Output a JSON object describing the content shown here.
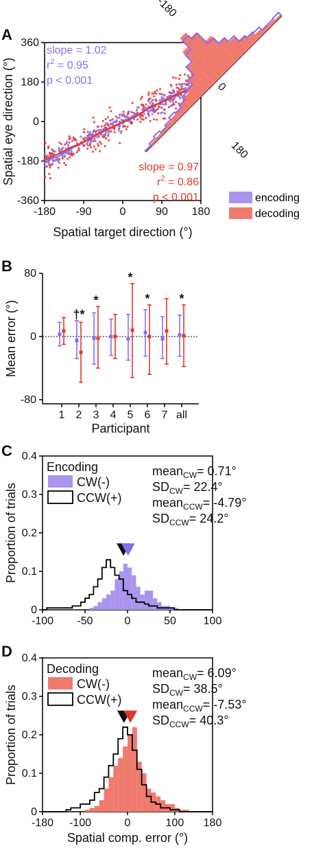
{
  "colors": {
    "encoding": "#8b6cf0",
    "decoding": "#e4372b",
    "encoding_fill": "#a995ee",
    "decoding_fill": "#ef7b6e",
    "black": "#111111"
  },
  "panel_labels": [
    "A",
    "B",
    "C",
    "D"
  ],
  "chart_data": [
    {
      "panel": "A",
      "type": "scatter",
      "xlabel": "Spatial target direction (°)",
      "ylabel": "Spatial eye direction (°)",
      "xlim": [
        -180,
        180
      ],
      "ylim": [
        -360,
        360
      ],
      "xticks": [
        "-180",
        "-90",
        "0",
        "90",
        "180"
      ],
      "yticks": [
        "360",
        "180",
        "0",
        "-180",
        "-360"
      ],
      "legend": {
        "placement": "bottom-right",
        "entries": [
          "encoding",
          "decoding"
        ]
      },
      "annotations": {
        "encoding": [
          "slope = 1.02",
          "r",
          "2",
          " = 0.95",
          "p < 0.001"
        ],
        "decoding": [
          "slope = 0.97",
          "r",
          "2",
          " = 0.86",
          "p < 0.001"
        ]
      },
      "series": [
        {
          "name": "encoding",
          "fit_slope": 1.02,
          "trend_x": [
            -180,
            -150,
            -120,
            -90,
            -60,
            -30,
            0,
            30,
            60,
            90,
            120,
            150,
            180
          ],
          "trend_y": [
            -178,
            -160,
            -125,
            -92,
            -62,
            -30,
            -2,
            28,
            60,
            92,
            122,
            148,
            178
          ]
        },
        {
          "name": "decoding",
          "fit_slope": 0.97,
          "trend_x": [
            -180,
            -150,
            -120,
            -90,
            -60,
            -30,
            0,
            30,
            60,
            90,
            120,
            150,
            180
          ],
          "trend_y": [
            -172,
            -150,
            -118,
            -95,
            -58,
            -30,
            -4,
            22,
            62,
            88,
            118,
            145,
            170
          ]
        }
      ],
      "marginal_histogram": {
        "tick_labels": [
          "-180",
          "0",
          "180"
        ]
      }
    },
    {
      "panel": "B",
      "type": "scatter",
      "xlabel": "Participant",
      "ylabel": "Mean error (°)",
      "ylim": [
        -80,
        80
      ],
      "yticks": [
        "80",
        "0",
        "-80"
      ],
      "categories": [
        "1",
        "2",
        "3",
        "4",
        "5",
        "6",
        "7",
        "all"
      ],
      "series": [
        {
          "name": "encoding",
          "means": [
            3,
            -5,
            -2,
            0,
            -3,
            5,
            -3,
            2
          ],
          "low": [
            -12,
            -28,
            -35,
            -24,
            -30,
            -25,
            -28,
            -25
          ],
          "high": [
            18,
            20,
            30,
            22,
            28,
            34,
            25,
            27
          ]
        },
        {
          "name": "decoding",
          "means": [
            7,
            -20,
            -2,
            0,
            8,
            0,
            7,
            1
          ],
          "low": [
            -10,
            -58,
            -40,
            -28,
            -52,
            -48,
            -35,
            -38
          ],
          "high": [
            24,
            18,
            38,
            28,
            67,
            40,
            48,
            40
          ]
        }
      ],
      "markers": [
        {
          "category": "2",
          "text": "†*"
        },
        {
          "category": "3",
          "text": "*"
        },
        {
          "category": "5",
          "text": "*"
        },
        {
          "category": "6",
          "text": "*"
        },
        {
          "category": "all",
          "text": "*"
        }
      ]
    },
    {
      "panel": "C",
      "type": "bar",
      "title": "Encoding",
      "xlabel": "",
      "ylabel": "Proportion of trials",
      "xlim": [
        -100,
        100
      ],
      "ylim": [
        0,
        0.4
      ],
      "xticks": [
        "-100",
        "-50",
        "0",
        "50",
        "100"
      ],
      "yticks": [
        "0",
        "0.1",
        "0.2",
        "0.3",
        "0.4"
      ],
      "bin_width": 5,
      "bin_start": -100,
      "legend": {
        "placement": "top-left",
        "entries": [
          "CW(-)",
          "CCW(+)"
        ]
      },
      "stats": {
        "mean_cw": {
          "prefix": "mean",
          "sub": "CW",
          "value": "= 0.71°"
        },
        "sd_cw": {
          "prefix": "SD",
          "sub": "CW",
          "value": "= 22.4°"
        },
        "mean_ccw": {
          "prefix": "mean",
          "sub": "CCW",
          "value": "= -4.79°"
        },
        "sd_ccw": {
          "prefix": "SD",
          "sub": "CCW",
          "value": "= 24.2°"
        }
      },
      "mean_markers": {
        "cw": 0.71,
        "ccw": -4.79
      },
      "series": [
        {
          "name": "CW(-)",
          "values": [
            0,
            0,
            0,
            0,
            0,
            0,
            0,
            0,
            0,
            0,
            0,
            0.005,
            0.01,
            0.02,
            0.03,
            0.04,
            0.05,
            0.08,
            0.1,
            0.12,
            0.11,
            0.09,
            0.06,
            0.04,
            0.05,
            0.05,
            0.03,
            0.02,
            0.01,
            0.01,
            0.005,
            0.005,
            0,
            0,
            0,
            0,
            0,
            0,
            0,
            0
          ]
        },
        {
          "name": "CCW(+)",
          "values": [
            0,
            0.005,
            0.005,
            0.005,
            0.005,
            0.005,
            0.005,
            0.01,
            0.01,
            0.02,
            0.03,
            0.04,
            0.06,
            0.08,
            0.11,
            0.13,
            0.11,
            0.09,
            0.08,
            0.05,
            0.04,
            0.03,
            0.02,
            0.02,
            0.015,
            0.01,
            0.01,
            0.005,
            0.005,
            0.005,
            0.005,
            0,
            0,
            0,
            0,
            0,
            0,
            0,
            0,
            0
          ]
        }
      ]
    },
    {
      "panel": "D",
      "type": "bar",
      "title": "Decoding",
      "xlabel": "Spatial comp. error (°)",
      "ylabel": "Proportion of trials",
      "xlim": [
        -180,
        180
      ],
      "ylim": [
        0,
        0.4
      ],
      "xticks": [
        "-180",
        "-100",
        "0",
        "100",
        "180"
      ],
      "yticks": [
        "0",
        "0.1",
        "0.2",
        "0.3",
        "0.4"
      ],
      "bin_width": 10,
      "bin_start": -180,
      "legend": {
        "placement": "top-left",
        "entries": [
          "CW(-)",
          "CCW(+)"
        ]
      },
      "stats": {
        "mean_cw": {
          "prefix": "mean",
          "sub": "CW",
          "value": "= 6.09°"
        },
        "sd_cw": {
          "prefix": "SD",
          "sub": "CW",
          "value": "= 38.5°"
        },
        "mean_ccw": {
          "prefix": "mean",
          "sub": "CCW",
          "value": "= -7.53°"
        },
        "sd_ccw": {
          "prefix": "SD",
          "sub": "CCW",
          "value": "= 40.3°"
        }
      },
      "mean_markers": {
        "cw": 6.09,
        "ccw": -7.53
      },
      "series": [
        {
          "name": "CW(-)",
          "values": [
            0,
            0,
            0,
            0,
            0,
            0,
            0,
            0,
            0,
            0.005,
            0.01,
            0.015,
            0.03,
            0.06,
            0.09,
            0.12,
            0.14,
            0.17,
            0.2,
            0.22,
            0.13,
            0.1,
            0.06,
            0.05,
            0.04,
            0.03,
            0.02,
            0.02,
            0.01,
            0.005,
            0.005,
            0,
            0,
            0,
            0,
            0
          ]
        },
        {
          "name": "CCW(+)",
          "values": [
            0,
            0,
            0,
            0,
            0,
            0.005,
            0.01,
            0.01,
            0.02,
            0.02,
            0.03,
            0.05,
            0.06,
            0.09,
            0.12,
            0.15,
            0.19,
            0.22,
            0.2,
            0.16,
            0.11,
            0.07,
            0.04,
            0.025,
            0.02,
            0.01,
            0.01,
            0.005,
            0.005,
            0,
            0,
            0,
            0,
            0,
            0,
            0
          ]
        }
      ]
    }
  ]
}
